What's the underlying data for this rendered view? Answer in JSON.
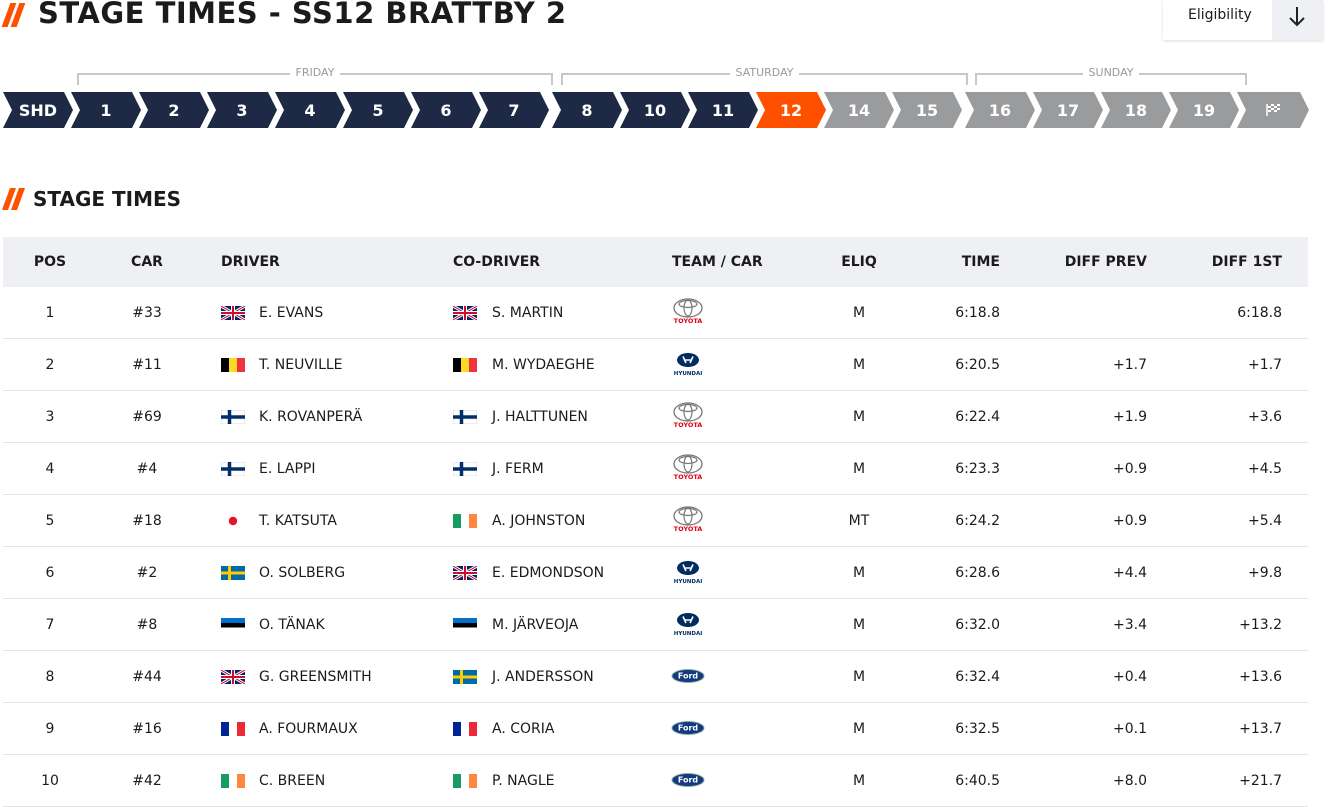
{
  "header": {
    "title": "STAGE TIMES - SS12 BRATTBY 2",
    "filter": "Eligibility"
  },
  "days": [
    {
      "label": "FRIDAY"
    },
    {
      "label": "SATURDAY"
    },
    {
      "label": "SUNDAY"
    }
  ],
  "stages": [
    {
      "label": "SHD",
      "status": "done"
    },
    {
      "label": "1",
      "status": "done"
    },
    {
      "label": "2",
      "status": "done"
    },
    {
      "label": "3",
      "status": "done"
    },
    {
      "label": "4",
      "status": "done"
    },
    {
      "label": "5",
      "status": "done"
    },
    {
      "label": "6",
      "status": "done"
    },
    {
      "label": "7",
      "status": "done"
    },
    {
      "label": "8",
      "status": "done"
    },
    {
      "label": "10",
      "status": "done"
    },
    {
      "label": "11",
      "status": "done"
    },
    {
      "label": "12",
      "status": "current"
    },
    {
      "label": "14",
      "status": "upcoming"
    },
    {
      "label": "15",
      "status": "upcoming"
    },
    {
      "label": "16",
      "status": "upcoming"
    },
    {
      "label": "17",
      "status": "upcoming"
    },
    {
      "label": "18",
      "status": "upcoming"
    },
    {
      "label": "19",
      "status": "upcoming"
    }
  ],
  "section": {
    "title": "STAGE TIMES"
  },
  "table": {
    "columns": [
      "POS",
      "CAR",
      "DRIVER",
      "CO-DRIVER",
      "TEAM / CAR",
      "ELIQ",
      "TIME",
      "DIFF PREV",
      "DIFF 1ST"
    ],
    "rows": [
      {
        "pos": 1,
        "car": "#33",
        "driver": "E. EVANS",
        "driver_flag": "gb",
        "co_driver": "S. MARTIN",
        "co_driver_flag": "gb",
        "team": "TOYOTA",
        "eliq": "M",
        "time": "6:18.8",
        "diff_prev": null,
        "diff_1st": "6:18.8"
      },
      {
        "pos": 2,
        "car": "#11",
        "driver": "T. NEUVILLE",
        "driver_flag": "be",
        "co_driver": "M. WYDAEGHE",
        "co_driver_flag": "be",
        "team": "HYUNDAI",
        "eliq": "M",
        "time": "6:20.5",
        "diff_prev": "+1.7",
        "diff_1st": "+1.7"
      },
      {
        "pos": 3,
        "car": "#69",
        "driver": "K. ROVANPERÄ",
        "driver_flag": "fi",
        "co_driver": "J. HALTTUNEN",
        "co_driver_flag": "fi",
        "team": "TOYOTA",
        "eliq": "M",
        "time": "6:22.4",
        "diff_prev": "+1.9",
        "diff_1st": "+3.6"
      },
      {
        "pos": 4,
        "car": "#4",
        "driver": "E. LAPPI",
        "driver_flag": "fi",
        "co_driver": "J. FERM",
        "co_driver_flag": "fi",
        "team": "TOYOTA",
        "eliq": "M",
        "time": "6:23.3",
        "diff_prev": "+0.9",
        "diff_1st": "+4.5"
      },
      {
        "pos": 5,
        "car": "#18",
        "driver": "T. KATSUTA",
        "driver_flag": "jp",
        "co_driver": "A. JOHNSTON",
        "co_driver_flag": "ie",
        "team": "TOYOTA",
        "eliq": "MT",
        "time": "6:24.2",
        "diff_prev": "+0.9",
        "diff_1st": "+5.4"
      },
      {
        "pos": 6,
        "car": "#2",
        "driver": "O. SOLBERG",
        "driver_flag": "se",
        "co_driver": "E. EDMONDSON",
        "co_driver_flag": "gb",
        "team": "HYUNDAI",
        "eliq": "M",
        "time": "6:28.6",
        "diff_prev": "+4.4",
        "diff_1st": "+9.8"
      },
      {
        "pos": 7,
        "car": "#8",
        "driver": "O. TÄNAK",
        "driver_flag": "ee",
        "co_driver": "M. JÄRVEOJA",
        "co_driver_flag": "ee",
        "team": "HYUNDAI",
        "eliq": "M",
        "time": "6:32.0",
        "diff_prev": "+3.4",
        "diff_1st": "+13.2"
      },
      {
        "pos": 8,
        "car": "#44",
        "driver": "G. GREENSMITH",
        "driver_flag": "gb",
        "co_driver": "J. ANDERSSON",
        "co_driver_flag": "se",
        "team": "Ford",
        "eliq": "M",
        "time": "6:32.4",
        "diff_prev": "+0.4",
        "diff_1st": "+13.6"
      },
      {
        "pos": 9,
        "car": "#16",
        "driver": "A. FOURMAUX",
        "driver_flag": "fr",
        "co_driver": "A. CORIA",
        "co_driver_flag": "fr",
        "team": "Ford",
        "eliq": "M",
        "time": "6:32.5",
        "diff_prev": "+0.1",
        "diff_1st": "+13.7"
      },
      {
        "pos": 10,
        "car": "#42",
        "driver": "C. BREEN",
        "driver_flag": "ie",
        "co_driver": "P. NAGLE",
        "co_driver_flag": "ie",
        "team": "Ford",
        "eliq": "M",
        "time": "6:40.5",
        "diff_prev": "+8.0",
        "diff_1st": "+21.7"
      }
    ]
  }
}
